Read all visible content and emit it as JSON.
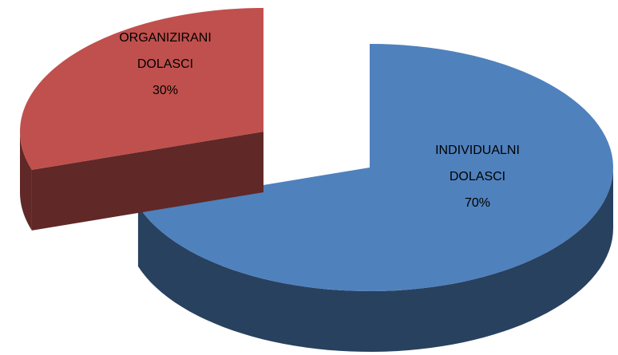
{
  "chart_data": {
    "type": "pie",
    "categories": [
      "INDIVIDUALNI DOLASCI",
      "ORGANIZIRANI DOLASCI"
    ],
    "values": [
      70,
      30
    ],
    "value_labels": [
      "70%",
      "30%"
    ],
    "colors": [
      "#4f81bd",
      "#c0504d"
    ],
    "three_d": true,
    "exploded": true
  }
}
